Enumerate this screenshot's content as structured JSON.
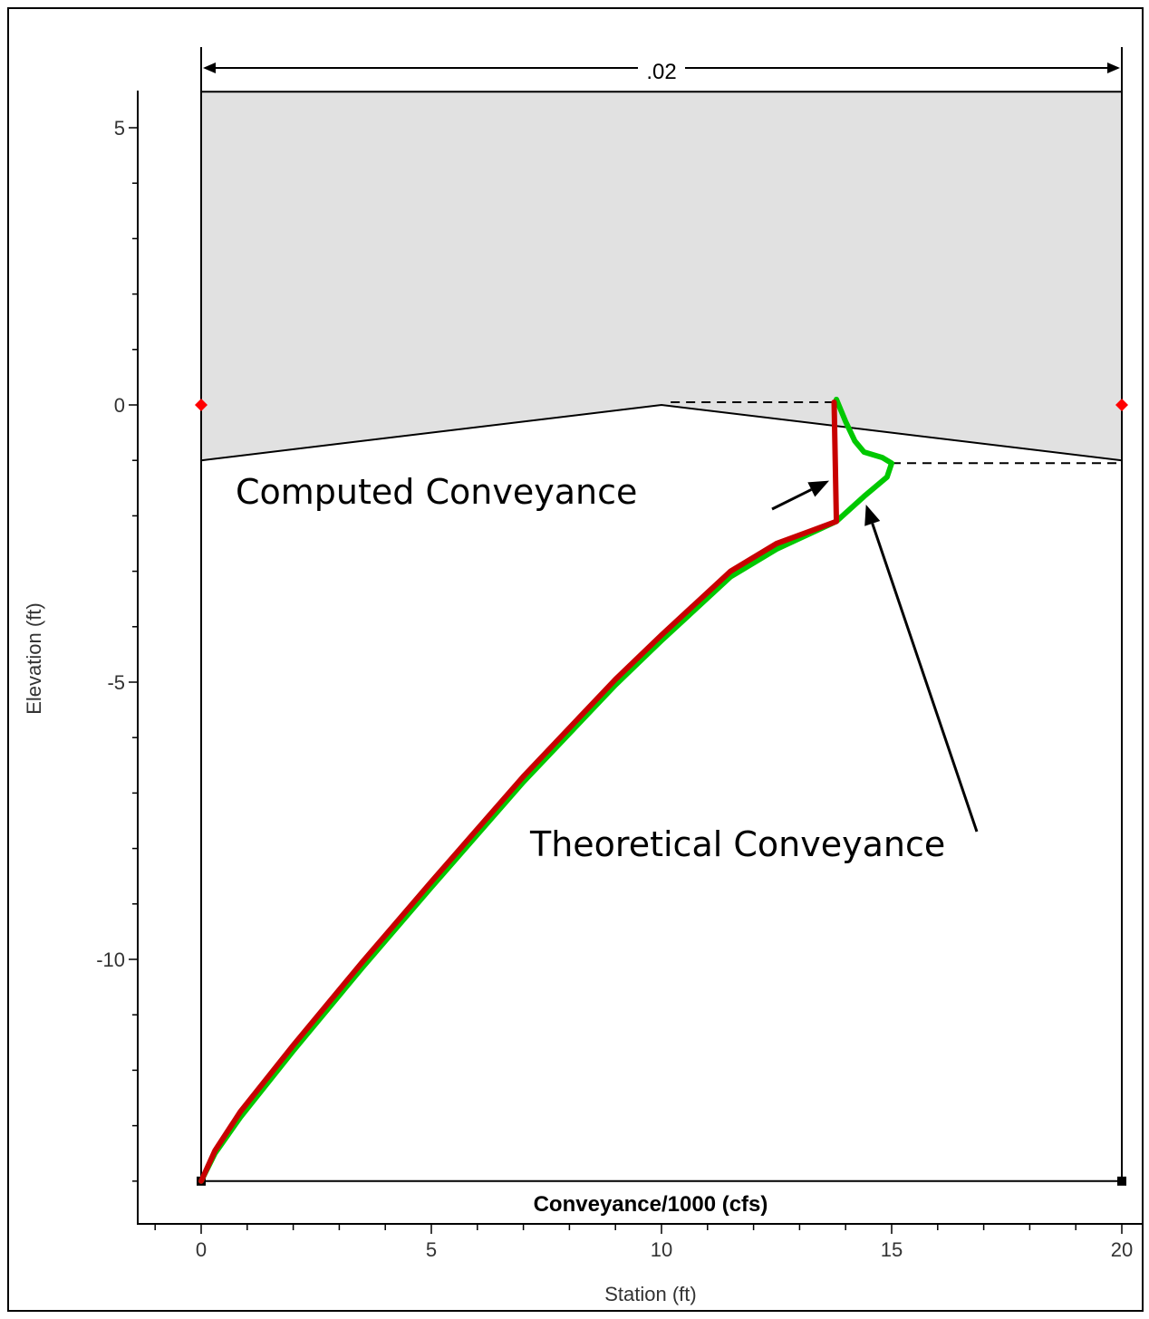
{
  "chart_data": {
    "type": "line",
    "xlabel": "Station (ft)",
    "ylabel": "Elevation (ft)",
    "inner_xlabel": "Conveyance/1000 (cfs)",
    "xlim": [
      -1.4,
      20.4
    ],
    "ylim": [
      -14.8,
      5.75
    ],
    "x_ticks": [
      0,
      5,
      10,
      15,
      20
    ],
    "y_ticks": [
      5,
      0,
      -5,
      -10
    ],
    "grid": false,
    "n_value_label": ".02",
    "water_surface": 5.65,
    "ground": {
      "x": [
        0,
        10,
        20
      ],
      "y": [
        -1,
        0,
        -1
      ]
    },
    "bank_stations": [
      {
        "x": 0,
        "y": 0
      },
      {
        "x": 20,
        "y": 0
      }
    ],
    "bottom_line": {
      "x": [
        0,
        20
      ],
      "y": [
        -14,
        -14
      ]
    },
    "dashed_lines": [
      {
        "x": [
          10.2,
          13.8
        ],
        "y": [
          0.05,
          0.05
        ]
      },
      {
        "x": [
          15.0,
          20
        ],
        "y": [
          -1.05,
          -1.05
        ]
      }
    ],
    "series": [
      {
        "name": "Theoretical Conveyance",
        "color": "#00c800",
        "x": [
          0,
          0.3,
          0.85,
          2,
          3.5,
          5,
          7,
          9,
          10,
          11.5,
          12.5,
          13.8,
          14.4,
          14.9,
          15.0,
          14.8,
          14.4,
          14.2,
          14.0,
          13.8
        ],
        "y": [
          -14,
          -13.5,
          -12.85,
          -11.65,
          -10.15,
          -8.7,
          -6.8,
          -5.05,
          -4.25,
          -3.1,
          -2.6,
          -2.1,
          -1.65,
          -1.3,
          -1.05,
          -0.95,
          -0.85,
          -0.65,
          -0.3,
          0.1
        ]
      },
      {
        "name": "Computed Conveyance",
        "color": "#c80000",
        "x": [
          0,
          0.3,
          0.85,
          2,
          3.5,
          5,
          7,
          9,
          10,
          11.5,
          12.5,
          13.8,
          13.75
        ],
        "y": [
          -14,
          -13.45,
          -12.75,
          -11.55,
          -10.05,
          -8.6,
          -6.7,
          -4.95,
          -4.15,
          -3.0,
          -2.5,
          -2.1,
          0.05
        ]
      }
    ],
    "annotations": [
      {
        "text": "Computed Conveyance",
        "arrow_to": {
          "x": 13.8,
          "y": -1.4
        }
      },
      {
        "text": "Theoretical Conveyance",
        "arrow_to": {
          "x": 14.6,
          "y": -1.7
        }
      }
    ],
    "colors": {
      "fill": "#e1e1e1",
      "bank_marker": "#ff0000"
    }
  }
}
